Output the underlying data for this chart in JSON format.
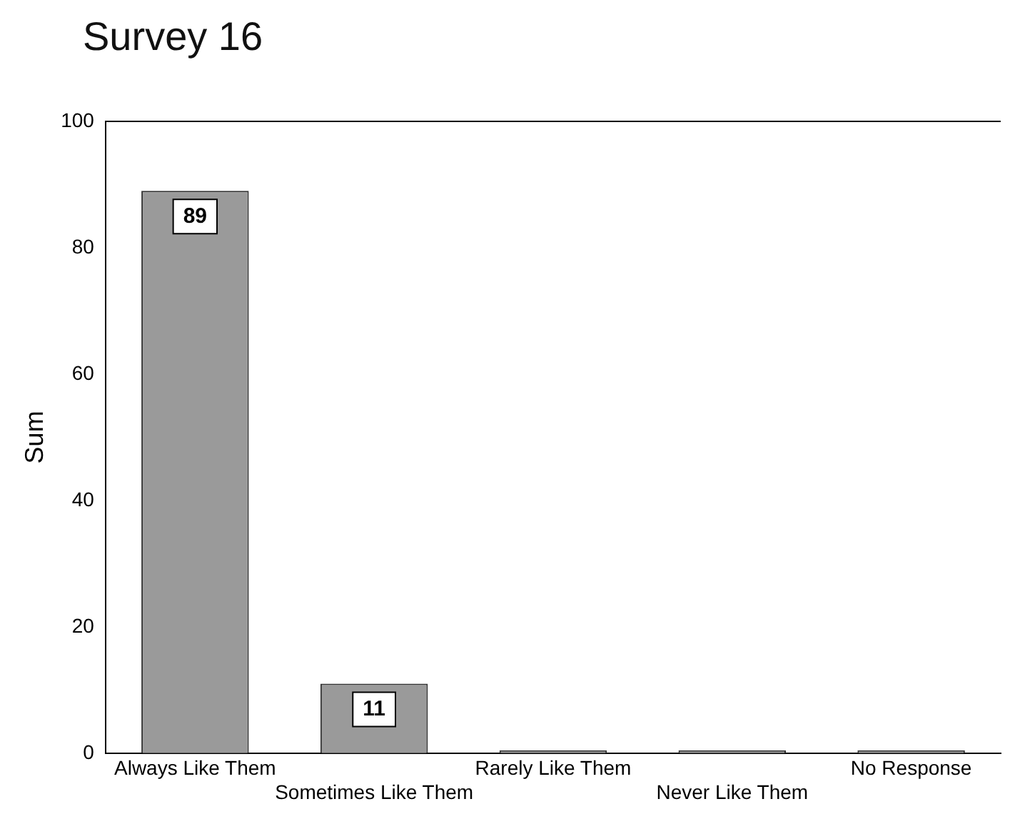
{
  "chart_data": {
    "type": "bar",
    "title": "Survey 16",
    "ylabel": "Sum",
    "categories": [
      "Always Like Them",
      "Sometimes Like Them",
      "Rarely Like Them",
      "Never Like Them",
      "No Response"
    ],
    "values": [
      89,
      11,
      0,
      0,
      0
    ],
    "color": "#9a9a9a",
    "value_labels": [
      "89",
      "11",
      null,
      null,
      null
    ],
    "ylim": [
      0,
      100
    ],
    "yticks": [
      0,
      20,
      40,
      60,
      80,
      100
    ],
    "grid": false,
    "legend": false
  }
}
